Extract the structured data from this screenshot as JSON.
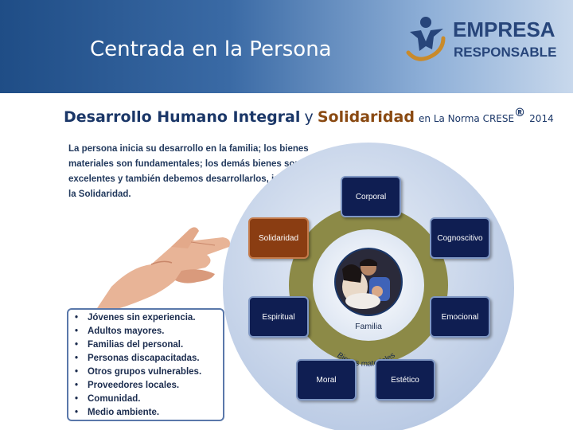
{
  "header": {
    "title": "Centrada en la Persona",
    "logo_line1": "EMPRESA",
    "logo_line2": "RESPONSABLE"
  },
  "main_title": {
    "part1": "Desarrollo Humano Integral",
    "part2": "y",
    "part3": "Solidaridad",
    "part4": "en La Norma CRESE",
    "registered": "®",
    "year": "2014"
  },
  "intro_text": "La persona inicia su desarrollo en la familia;  los bienes materiales son fundamentales; los demás bienes son excelentes y también debemos desarrollarlos, incluyendo la Solidaridad.",
  "diagram": {
    "center_label": "Familia",
    "ring_label": "Bienes materiales",
    "nodes": {
      "corporal": "Corporal",
      "cognoscitivo": "Cognoscitivo",
      "emocional": "Emocional",
      "estetico": "Estético",
      "moral": "Moral",
      "espiritual": "Espiritual",
      "solidaridad": "Solidaridad"
    },
    "colors": {
      "node": "#0f1e52",
      "highlight": "#8a3d12",
      "ring": "#8c8a47",
      "outer_circle": "#c9d6ea"
    }
  },
  "list": {
    "items": [
      "Jóvenes sin experiencia.",
      "Adultos mayores.",
      "Familias del personal.",
      "Personas discapacitadas.",
      "Otros grupos vulnerables.",
      "Proveedores locales.",
      "Comunidad.",
      "Medio ambiente."
    ]
  }
}
